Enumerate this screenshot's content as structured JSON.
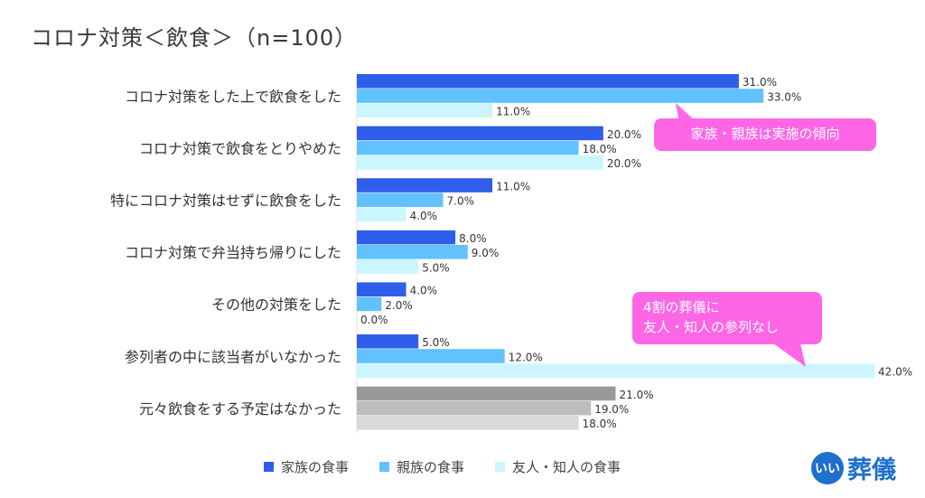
{
  "title": "コロナ対策＜飲食＞（n=100）",
  "legend": [
    {
      "name": "家族の食事",
      "color": "#2f5fea"
    },
    {
      "name": "親族の食事",
      "color": "#62c2ff"
    },
    {
      "name": "友人・知人の食事",
      "color": "#ccf6ff"
    }
  ],
  "callouts": {
    "family": "家族・親族は実施の傾向",
    "friends_line1": "4割の葬儀に",
    "friends_line2": "友人・知人の参列なし"
  },
  "logo": {
    "badge": "いい",
    "text": "葬儀"
  },
  "chart_data": {
    "type": "bar",
    "orientation": "horizontal",
    "categories": [
      "コロナ対策をした上で飲食をした",
      "コロナ対策で飲食をとりやめた",
      "特にコロナ対策はせずに飲食をした",
      "コロナ対策で弁当持ち帰りにした",
      "その他の対策をした",
      "参列者の中に該当者がいなかった",
      "元々飲食をする予定はなかった"
    ],
    "series": [
      {
        "name": "家族の食事",
        "values": [
          31.0,
          20.0,
          11.0,
          8.0,
          4.0,
          5.0,
          21.0
        ]
      },
      {
        "name": "親族の食事",
        "values": [
          33.0,
          18.0,
          7.0,
          9.0,
          2.0,
          12.0,
          19.0
        ]
      },
      {
        "name": "友人・知人の食事",
        "values": [
          11.0,
          20.0,
          4.0,
          5.0,
          0.0,
          42.0,
          18.0
        ]
      }
    ],
    "value_labels": [
      [
        "31.0%",
        "33.0%",
        "11.0%"
      ],
      [
        "20.0%",
        "18.0%",
        "20.0%"
      ],
      [
        "11.0%",
        "7.0%",
        "4.0%"
      ],
      [
        "8.0%",
        "9.0%",
        "5.0%"
      ],
      [
        "4.0%",
        "2.0%",
        "0.0%"
      ],
      [
        "5.0%",
        "12.0%",
        "42.0%"
      ],
      [
        "21.0%",
        "19.0%",
        "18.0%"
      ]
    ],
    "last_category_colors": [
      "#999999",
      "#bcbcbc",
      "#d9d9d9"
    ],
    "xlim": [
      0,
      42
    ],
    "grid": false
  }
}
